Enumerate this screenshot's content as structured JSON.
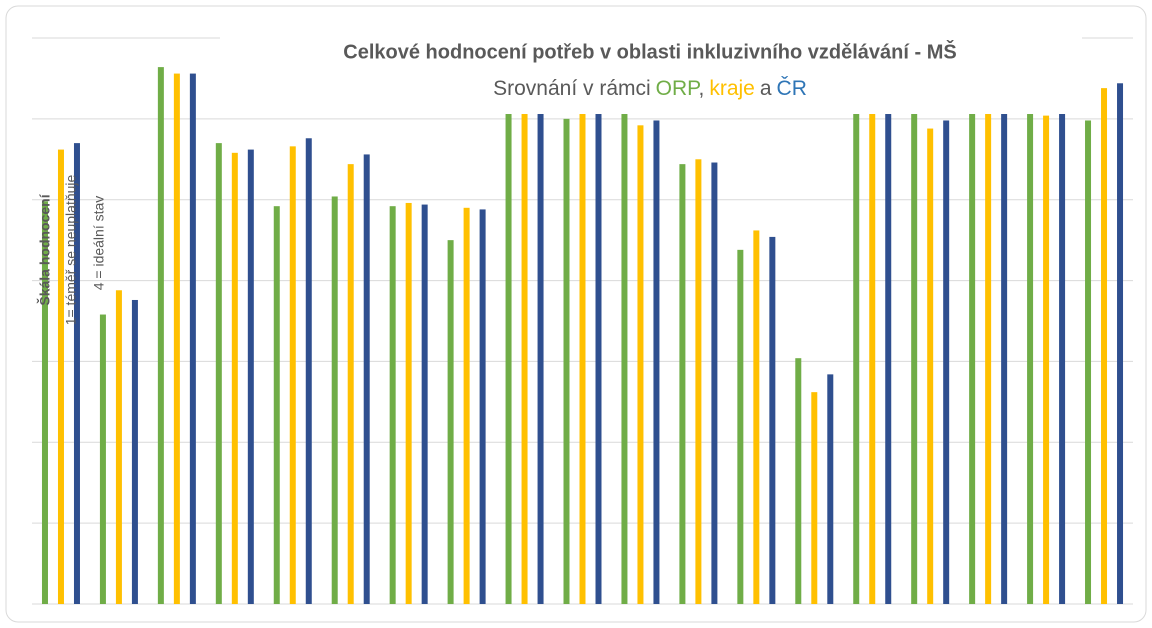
{
  "chart_data": {
    "type": "bar",
    "title": "Celkové hodnocení potřeb v oblasti inkluzivního vzdělávání - MŠ",
    "subtitle": [
      "Srovnání v rámci",
      ",",
      "a"
    ],
    "y_label": [
      "Škála hodnocení",
      "1= téměř se neuplatňuje",
      "4 = ideální stav"
    ],
    "categories": [
      null,
      null,
      null,
      null,
      null,
      null,
      null,
      null,
      null,
      null,
      null,
      null,
      null,
      null,
      null,
      null,
      null,
      null,
      null
    ],
    "series": [
      {
        "name": "ORP",
        "color": "#70ad47",
        "values": [
          2.49,
          1.79,
          3.32,
          2.85,
          2.46,
          2.52,
          2.46,
          2.25,
          3.03,
          3.0,
          3.03,
          2.72,
          2.19,
          1.52,
          3.03,
          3.03,
          3.03,
          3.03,
          2.99
        ]
      },
      {
        "name": "kraje",
        "color": "#ffc000",
        "values": [
          2.81,
          1.94,
          3.28,
          2.79,
          2.83,
          2.72,
          2.48,
          2.45,
          3.03,
          3.03,
          2.96,
          2.75,
          2.31,
          1.31,
          3.03,
          2.94,
          3.03,
          3.02,
          3.19
        ]
      },
      {
        "name": "ČR",
        "color": "#2f4f8f",
        "values": [
          2.85,
          1.88,
          3.28,
          2.81,
          2.88,
          2.78,
          2.47,
          2.44,
          3.03,
          3.03,
          2.99,
          2.73,
          2.27,
          1.42,
          3.03,
          2.99,
          3.03,
          3.03,
          3.22
        ]
      }
    ],
    "ylim": [
      0,
      3.5
    ],
    "yticks": [
      0,
      0.5,
      1,
      1.5,
      2,
      2.5,
      3,
      3.5
    ],
    "grid": true
  }
}
